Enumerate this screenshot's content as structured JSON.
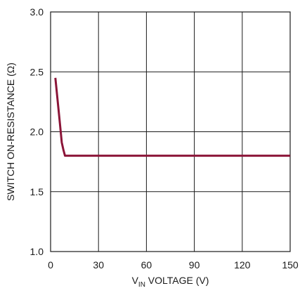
{
  "chart_data": {
    "type": "line",
    "title": "",
    "xlabel": {
      "prefix": "V",
      "subscript": "IN",
      "suffix": " VOLTAGE (V)"
    },
    "ylabel": "SWITCH ON-RESISTANCE (Ω)",
    "xlim": [
      0,
      150
    ],
    "ylim": [
      1.0,
      3.0
    ],
    "xticks": [
      0,
      30,
      60,
      90,
      120,
      150
    ],
    "xtick_labels": [
      "0",
      "30",
      "60",
      "90",
      "120",
      "150"
    ],
    "yticks": [
      1.0,
      1.5,
      2.0,
      2.5,
      3.0
    ],
    "ytick_labels": [
      "1.0",
      "1.5",
      "2.0",
      "2.5",
      "3.0"
    ],
    "grid": true,
    "series": [
      {
        "color": "#8b1538",
        "x": [
          3,
          4.5,
          6,
          7,
          8,
          9,
          20,
          60,
          100,
          150
        ],
        "y": [
          2.45,
          2.25,
          2.05,
          1.91,
          1.85,
          1.8,
          1.8,
          1.8,
          1.8,
          1.8
        ]
      }
    ]
  }
}
